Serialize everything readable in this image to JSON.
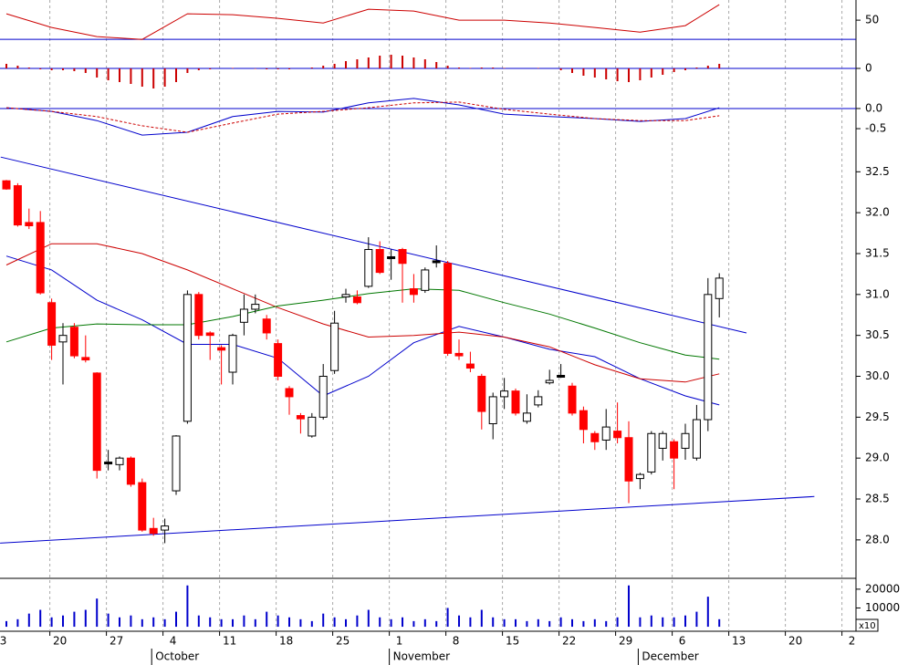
{
  "chart_data": [
    {
      "type": "line",
      "xlim": [
        -0.565,
        75.08
      ],
      "ylim": [
        14,
        71
      ],
      "yticks": [
        50
      ],
      "reference_lines": [
        30
      ],
      "reference_color": "#0000cc",
      "series": [
        {
          "color": "#cc0000",
          "x": [
            0,
            4,
            8,
            12,
            16,
            20,
            24,
            28,
            32,
            36,
            40,
            44,
            48,
            52,
            56,
            60,
            63
          ],
          "values": [
            56.7,
            42.4,
            32.9,
            30.0,
            56.7,
            55.7,
            51.9,
            47.1,
            61.4,
            59.5,
            50.0,
            50.0,
            47.1,
            42.4,
            37.6,
            44.3,
            66.2
          ]
        }
      ]
    },
    {
      "type": "bar",
      "xlim": [
        -0.565,
        75.08
      ],
      "ylim": [
        -0.25,
        0.15
      ],
      "yticks": [
        0
      ],
      "reference_lines": [
        0
      ],
      "reference_color": "#0000cc",
      "color": "#cc0000",
      "x": [
        0,
        1,
        2,
        3,
        4,
        5,
        6,
        7,
        8,
        9,
        10,
        11,
        12,
        13,
        14,
        15,
        16,
        17,
        18,
        19,
        20,
        21,
        22,
        23,
        24,
        25,
        26,
        27,
        28,
        29,
        30,
        31,
        32,
        33,
        34,
        35,
        36,
        37,
        38,
        39,
        40,
        41,
        42,
        43,
        44,
        45,
        46,
        47,
        48,
        49,
        50,
        51,
        52,
        53,
        54,
        55,
        56,
        57,
        58,
        59,
        60,
        61,
        62,
        63
      ],
      "values": [
        0.05,
        0.03,
        0.01,
        -0.01,
        -0.02,
        -0.02,
        -0.03,
        -0.05,
        -0.1,
        -0.13,
        -0.15,
        -0.17,
        -0.2,
        -0.22,
        -0.2,
        -0.15,
        -0.05,
        -0.02,
        -0.01,
        0,
        0.005,
        0,
        -0.005,
        -0.01,
        -0.01,
        -0.01,
        0,
        0.01,
        0.03,
        0.05,
        0.08,
        0.1,
        0.12,
        0.14,
        0.15,
        0.14,
        0.12,
        0.1,
        0.07,
        0.03,
        0.01,
        0.005,
        0.01,
        0.01,
        0.005,
        0,
        0,
        0.005,
        0,
        -0.02,
        -0.05,
        -0.08,
        -0.1,
        -0.12,
        -0.14,
        -0.15,
        -0.13,
        -0.1,
        -0.07,
        -0.04,
        -0.02,
        0.01,
        0.03,
        0.05
      ]
    },
    {
      "type": "line",
      "xlim": [
        -0.565,
        75.08
      ],
      "ylim": [
        -0.93,
        0.43
      ],
      "yticks": [
        {
          "value": 0,
          "label": "0.0"
        },
        -0.5
      ],
      "reference_lines": [
        0
      ],
      "reference_color": "#0000cc",
      "series": [
        {
          "color": "#0000cc",
          "x": [
            0,
            4,
            8,
            12,
            16,
            20,
            24,
            28,
            32,
            36,
            40,
            44,
            48,
            52,
            56,
            60,
            63
          ],
          "values": [
            0.02,
            -0.07,
            -0.3,
            -0.66,
            -0.59,
            -0.2,
            -0.07,
            -0.09,
            0.14,
            0.25,
            0.09,
            -0.14,
            -0.2,
            -0.25,
            -0.32,
            -0.25,
            0.02
          ]
        },
        {
          "color": "#cc0000",
          "dashed": true,
          "x": [
            0,
            4,
            8,
            12,
            16,
            20,
            24,
            28,
            32,
            36,
            40,
            44,
            48,
            52,
            56,
            60,
            63
          ],
          "values": [
            0.02,
            -0.07,
            -0.2,
            -0.43,
            -0.59,
            -0.36,
            -0.14,
            -0.07,
            0.02,
            0.14,
            0.16,
            -0.02,
            -0.14,
            -0.25,
            -0.3,
            -0.3,
            -0.18
          ]
        }
      ]
    },
    {
      "type": "candlestick",
      "xlim": [
        -0.565,
        75.08
      ],
      "ylim": [
        27.53,
        32.76
      ],
      "yticks": [
        {
          "value": 28,
          "label": "28.0"
        },
        28.5,
        {
          "value": 29,
          "label": "29.0"
        },
        29.5,
        {
          "value": 30,
          "label": "30.0"
        },
        30.5,
        {
          "value": 31,
          "label": "31.0"
        },
        31.5,
        {
          "value": 32,
          "label": "32.0"
        },
        32.5
      ],
      "up_color": "#ffffff",
      "down_color": "#ff0000",
      "x": [
        0,
        1,
        2,
        3,
        4,
        5,
        6,
        7,
        8,
        9,
        10,
        11,
        12,
        13,
        14,
        15,
        16,
        17,
        18,
        19,
        20,
        21,
        22,
        23,
        24,
        25,
        26,
        27,
        28,
        29,
        30,
        31,
        32,
        33,
        34,
        35,
        36,
        37,
        38,
        39,
        40,
        41,
        42,
        43,
        44,
        45,
        46,
        47,
        48,
        49,
        50,
        51,
        52,
        53,
        54,
        55,
        56,
        57,
        58,
        59,
        60,
        61,
        62,
        63
      ],
      "open": [
        32.39,
        32.33,
        31.88,
        31.88,
        30.9,
        30.42,
        30.6,
        30.23,
        30.04,
        28.94,
        28.92,
        29.0,
        28.7,
        28.14,
        28.12,
        28.6,
        29.45,
        31.0,
        30.53,
        30.35,
        30.05,
        30.66,
        30.82,
        30.7,
        30.4,
        29.85,
        29.52,
        29.27,
        29.5,
        30.07,
        30.97,
        30.97,
        31.1,
        31.55,
        31.45,
        31.55,
        31.07,
        31.05,
        31.4,
        31.38,
        30.28,
        30.15,
        30.0,
        29.42,
        29.75,
        29.82,
        29.45,
        29.65,
        29.92,
        30.0,
        29.88,
        29.58,
        29.3,
        29.22,
        29.33,
        29.25,
        28.75,
        28.83,
        29.12,
        29.2,
        29.12,
        29.0,
        29.47,
        30.95
      ],
      "high": [
        32.4,
        32.36,
        32.05,
        32.02,
        30.95,
        30.65,
        30.65,
        30.5,
        30.05,
        29.1,
        29.02,
        29.02,
        28.75,
        28.27,
        28.26,
        29.28,
        31.05,
        31.03,
        30.55,
        30.38,
        30.52,
        31.0,
        31.0,
        30.75,
        30.45,
        29.88,
        29.55,
        29.55,
        30.15,
        30.8,
        31.07,
        31.05,
        31.7,
        31.65,
        31.55,
        31.57,
        31.25,
        31.33,
        31.6,
        31.41,
        30.45,
        30.3,
        30.03,
        29.8,
        29.98,
        29.85,
        29.78,
        29.83,
        30.08,
        30.15,
        29.92,
        29.63,
        29.33,
        29.6,
        29.68,
        29.45,
        28.82,
        29.33,
        29.33,
        29.23,
        29.42,
        29.65,
        31.2,
        31.26
      ],
      "low": [
        32.28,
        31.83,
        31.8,
        31.0,
        30.2,
        29.9,
        30.22,
        30.17,
        28.75,
        28.85,
        28.85,
        28.65,
        28.1,
        28.05,
        27.96,
        28.55,
        29.42,
        30.45,
        30.2,
        29.9,
        29.9,
        30.5,
        30.77,
        30.45,
        29.95,
        29.53,
        29.3,
        29.25,
        29.47,
        30.03,
        30.9,
        30.88,
        31.08,
        31.25,
        31.18,
        30.9,
        30.9,
        31.02,
        31.33,
        30.25,
        30.2,
        30.05,
        29.35,
        29.23,
        29.6,
        29.52,
        29.42,
        29.62,
        29.9,
        29.98,
        29.52,
        29.18,
        29.1,
        29.1,
        29.18,
        28.45,
        28.62,
        28.8,
        28.97,
        28.62,
        28.98,
        28.97,
        29.33,
        30.72
      ],
      "close": [
        32.29,
        31.85,
        31.84,
        31.02,
        30.38,
        30.5,
        30.25,
        30.2,
        28.85,
        28.94,
        29.0,
        28.68,
        28.12,
        28.08,
        28.17,
        29.27,
        31.0,
        30.5,
        30.5,
        30.32,
        30.5,
        30.82,
        30.88,
        30.53,
        30.0,
        29.75,
        29.48,
        29.5,
        30.0,
        30.65,
        31.0,
        30.9,
        31.55,
        31.27,
        31.45,
        31.38,
        31.0,
        31.3,
        31.4,
        30.28,
        30.25,
        30.1,
        29.57,
        29.75,
        29.82,
        29.55,
        29.55,
        29.75,
        29.95,
        30.0,
        29.55,
        29.35,
        29.2,
        29.38,
        29.25,
        28.72,
        28.8,
        29.3,
        29.3,
        29.0,
        29.3,
        29.47,
        31.0,
        31.2
      ],
      "series": [
        {
          "color": "#0000cc",
          "x": [
            0,
            4,
            8,
            12,
            16,
            20,
            24,
            28,
            32,
            36,
            40,
            44,
            48,
            52,
            56,
            60,
            63
          ],
          "values": [
            31.47,
            31.3,
            30.93,
            30.69,
            30.39,
            30.39,
            30.22,
            29.76,
            30.0,
            30.41,
            30.61,
            30.48,
            30.33,
            30.24,
            29.97,
            29.76,
            29.65
          ]
        },
        {
          "color": "#cc0000",
          "x": [
            0,
            4,
            8,
            12,
            16,
            20,
            24,
            28,
            32,
            36,
            40,
            44,
            48,
            52,
            56,
            60,
            63
          ],
          "values": [
            31.36,
            31.62,
            31.62,
            31.5,
            31.3,
            31.07,
            30.84,
            30.64,
            30.48,
            30.5,
            30.54,
            30.48,
            30.36,
            30.14,
            29.97,
            29.93,
            30.03
          ]
        },
        {
          "color": "#007700",
          "x": [
            0,
            4,
            8,
            12,
            16,
            20,
            24,
            28,
            32,
            36,
            40,
            44,
            48,
            52,
            56,
            60,
            63
          ],
          "values": [
            30.42,
            30.59,
            30.64,
            30.63,
            30.63,
            30.73,
            30.86,
            30.93,
            31.01,
            31.07,
            31.05,
            30.9,
            30.76,
            30.59,
            30.41,
            30.26,
            30.21
          ]
        }
      ],
      "trendlines": [
        {
          "color": "#0000cc",
          "x": [
            -0.5,
            65.4
          ],
          "values": [
            32.68,
            30.53
          ]
        },
        {
          "color": "#0000cc",
          "x": [
            -0.56,
            71.4
          ],
          "values": [
            27.96,
            28.53
          ]
        }
      ]
    },
    {
      "type": "bar",
      "xlim": [
        -0.565,
        75.08
      ],
      "ylim": [
        -2400,
        24800
      ],
      "yticks": [
        10000,
        20000
      ],
      "color": "#0000cc",
      "scale_note": "x10",
      "x": [
        0,
        1,
        2,
        3,
        4,
        5,
        6,
        7,
        8,
        9,
        10,
        11,
        12,
        13,
        14,
        15,
        16,
        17,
        18,
        19,
        20,
        21,
        22,
        23,
        24,
        25,
        26,
        27,
        28,
        29,
        30,
        31,
        32,
        33,
        34,
        35,
        36,
        37,
        38,
        39,
        40,
        41,
        42,
        43,
        44,
        45,
        46,
        47,
        48,
        49,
        50,
        51,
        52,
        53,
        54,
        55,
        56,
        57,
        58,
        59,
        60,
        61,
        62,
        63
      ],
      "values": [
        3000,
        4000,
        7000,
        9000,
        5000,
        6000,
        8000,
        9000,
        15000,
        7000,
        5000,
        6000,
        4000,
        5000,
        4000,
        8000,
        22000,
        6000,
        5000,
        4000,
        4000,
        6000,
        4000,
        8000,
        6000,
        5000,
        4000,
        3000,
        7000,
        5000,
        4000,
        6000,
        9000,
        5000,
        4000,
        5000,
        3000,
        4000,
        3000,
        10000,
        6000,
        5000,
        9000,
        5000,
        4000,
        4000,
        3000,
        4000,
        3000,
        5000,
        4000,
        3000,
        4000,
        3000,
        5000,
        22000,
        5000,
        6000,
        5000,
        5000,
        6000,
        8000,
        16000,
        4000
      ],
      "xticks": [
        {
          "value": -1,
          "label": "3"
        },
        {
          "value": 4,
          "label": "20"
        },
        {
          "value": 9,
          "label": "27"
        },
        {
          "value": 14,
          "label": "4"
        },
        {
          "value": 19,
          "label": "11"
        },
        {
          "value": 24,
          "label": "18"
        },
        {
          "value": 29,
          "label": "25"
        },
        {
          "value": 34,
          "label": "1"
        },
        {
          "value": 39,
          "label": "8"
        },
        {
          "value": 44,
          "label": "15"
        },
        {
          "value": 49,
          "label": "22"
        },
        {
          "value": 54,
          "label": "29"
        },
        {
          "value": 59,
          "label": "6"
        },
        {
          "value": 64,
          "label": "13"
        },
        {
          "value": 69,
          "label": "20"
        },
        {
          "value": 74,
          "label": "2"
        }
      ],
      "months": [
        {
          "value": 13,
          "label": "October"
        },
        {
          "value": 34,
          "label": "November"
        },
        {
          "value": 56,
          "label": "December"
        }
      ]
    }
  ]
}
